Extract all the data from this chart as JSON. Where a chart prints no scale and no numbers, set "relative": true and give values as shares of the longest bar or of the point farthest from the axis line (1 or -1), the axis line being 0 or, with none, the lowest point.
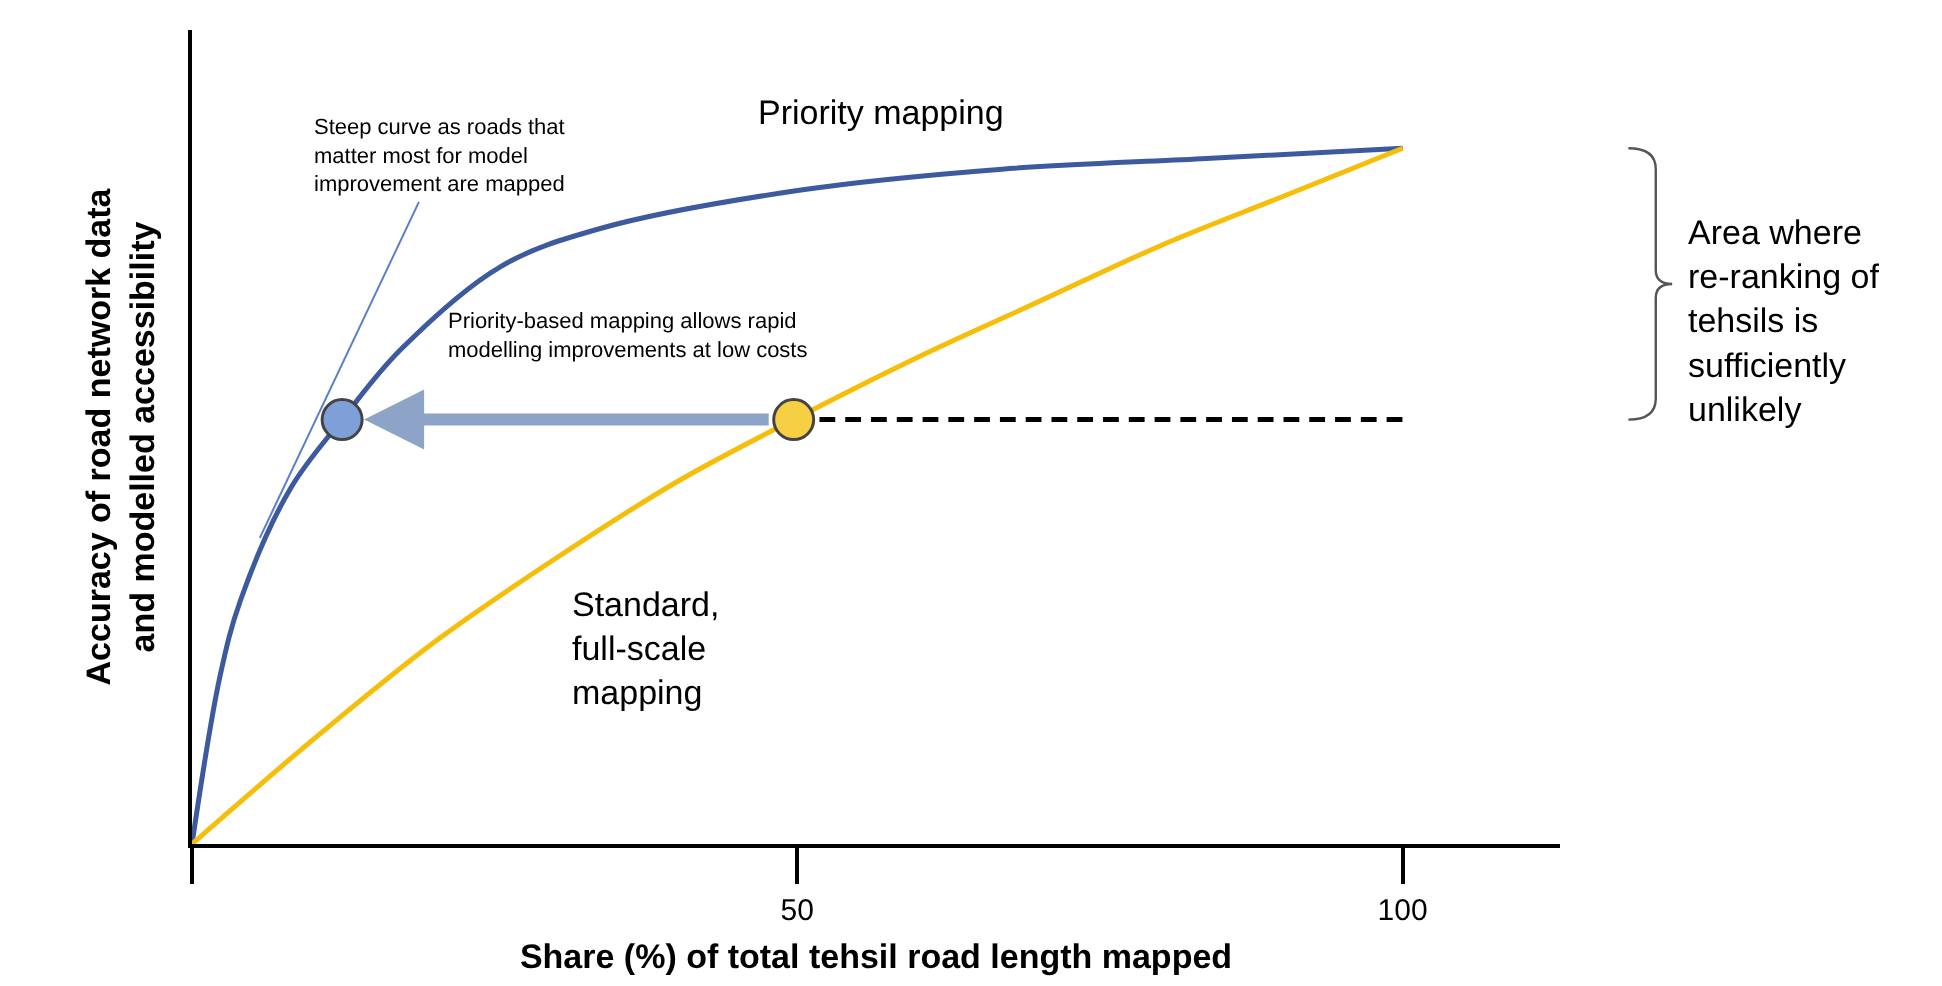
{
  "chart_data": {
    "type": "line",
    "relative": true,
    "xlabel": "Share (%) of total tehsil road length mapped",
    "ylabel": "Accuracy of road network data and modelled accessibility",
    "xlim": [
      0,
      113
    ],
    "xticks": [
      {
        "value": 0,
        "label": null
      },
      50,
      100
    ],
    "grid": false,
    "legend": false,
    "marker": "none",
    "line_style": "solid",
    "series": [
      {
        "name": "Priority mapping",
        "color": "#3d5a9e",
        "x": [
          0,
          2.3,
          4,
          8.1,
          12.4,
          17.2,
          25.5,
          33.8,
          50.3,
          66.9,
          83.4,
          100
        ],
        "values": [
          0,
          0.24,
          0.35,
          0.51,
          0.61,
          0.71,
          0.83,
          0.885,
          0.94,
          0.97,
          0.985,
          1
        ]
      },
      {
        "name": "Standard, full-scale mapping",
        "color": "#f5be0b",
        "x": [
          0,
          10,
          20,
          30,
          40,
          49.7,
          60,
          70,
          80,
          90,
          100
        ],
        "values": [
          0,
          0.15,
          0.29,
          0.41,
          0.52,
          0.61,
          0.7,
          0.78,
          0.86,
          0.93,
          1
        ]
      },
      {
        "type": "line",
        "color": "#000000",
        "line_style": "dashed",
        "x": [
          49.7,
          100
        ],
        "values": [
          0.61,
          0.61
        ]
      },
      {
        "type": "scatter",
        "marker": "circle",
        "colors": [
          "#7f9fd8",
          "#f7cf45"
        ],
        "x": [
          12.4,
          49.7
        ],
        "values": [
          0.61,
          0.61
        ]
      }
    ],
    "annotations": [
      {
        "text": "Steep curve as roads that matter most for model improvement are mapped",
        "x": 5.6,
        "y": 0.44
      },
      "Priority-based mapping allows rapid modelling improvements at low costs",
      "Area where re-ranking of tehsils is sufficiently unlikely"
    ]
  }
}
